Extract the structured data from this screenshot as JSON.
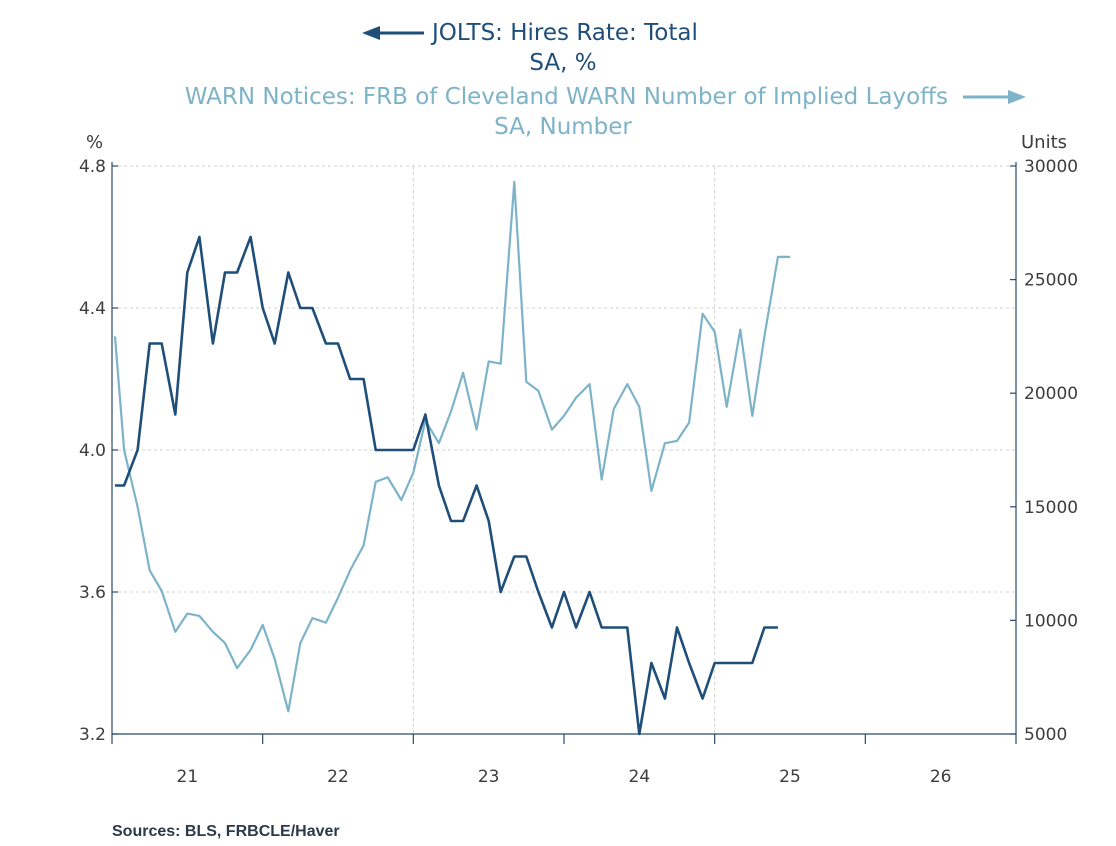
{
  "chart_data": {
    "type": "line",
    "legend": {
      "left_title": "JOLTS: Hires Rate: Total",
      "left_subtitle": "SA, %",
      "right_title": "WARN Notices: FRB of Cleveland WARN Number of Implied Layoffs",
      "right_subtitle": "SA, Number"
    },
    "y_left": {
      "unit": "%",
      "min": 3.2,
      "max": 4.8,
      "ticks": [
        4.8,
        4.4,
        4.0,
        3.6,
        3.2
      ],
      "tick_labels": [
        "4.8",
        "4.4",
        "4.0",
        "3.6",
        "3.2"
      ]
    },
    "y_right": {
      "unit": "Units",
      "min": 5000,
      "max": 30000,
      "ticks": [
        30000,
        25000,
        20000,
        15000,
        10000,
        5000
      ],
      "tick_labels": [
        "30000",
        "25000",
        "20000",
        "15000",
        "10000",
        "5000"
      ]
    },
    "x": {
      "min": 2020.52,
      "max": 2026.5,
      "year_boundaries": [
        2020.5,
        2021.5,
        2022.5,
        2023.5,
        2024.5,
        2025.5,
        2026.5
      ],
      "grid_at": [
        2022.5,
        2024.5
      ],
      "labels": [
        {
          "text": "21",
          "pos": 2021.0
        },
        {
          "text": "22",
          "pos": 2022.0
        },
        {
          "text": "23",
          "pos": 2023.0
        },
        {
          "text": "24",
          "pos": 2024.0
        },
        {
          "text": "25",
          "pos": 2025.0
        },
        {
          "text": "26",
          "pos": 2026.0
        }
      ]
    },
    "grid": true,
    "series": [
      {
        "name": "JOLTS: Hires Rate: Total",
        "axis": "left",
        "color": "#1f4e79",
        "x": [
          2020.52,
          2020.58,
          2020.67,
          2020.75,
          2020.83,
          2020.92,
          2021.0,
          2021.08,
          2021.17,
          2021.25,
          2021.33,
          2021.42,
          2021.5,
          2021.58,
          2021.67,
          2021.75,
          2021.83,
          2021.92,
          2022.0,
          2022.08,
          2022.17,
          2022.25,
          2022.33,
          2022.42,
          2022.5,
          2022.58,
          2022.67,
          2022.75,
          2022.83,
          2022.92,
          2023.0,
          2023.08,
          2023.17,
          2023.25,
          2023.33,
          2023.42,
          2023.5,
          2023.58,
          2023.67,
          2023.75,
          2023.83,
          2023.92,
          2024.0,
          2024.08,
          2024.17,
          2024.25,
          2024.33,
          2024.42,
          2024.5,
          2024.58,
          2024.67,
          2024.75,
          2024.83,
          2024.92
        ],
        "values": [
          3.9,
          3.9,
          4.0,
          4.3,
          4.3,
          4.1,
          4.5,
          4.6,
          4.3,
          4.5,
          4.5,
          4.6,
          4.4,
          4.3,
          4.5,
          4.4,
          4.4,
          4.3,
          4.3,
          4.2,
          4.2,
          4.0,
          4.0,
          4.0,
          4.0,
          4.1,
          3.9,
          3.8,
          3.8,
          3.9,
          3.8,
          3.6,
          3.7,
          3.7,
          3.6,
          3.5,
          3.6,
          3.5,
          3.6,
          3.5,
          3.5,
          3.5,
          3.2,
          3.4,
          3.3,
          3.5,
          3.4,
          3.3,
          3.4,
          3.4,
          3.4,
          3.4,
          3.5,
          3.5
        ]
      },
      {
        "name": "WARN Notices: FRB of Cleveland WARN Number of Implied Layoffs",
        "axis": "right",
        "color": "#7db3c9",
        "x": [
          2020.52,
          2020.58,
          2020.67,
          2020.75,
          2020.83,
          2020.92,
          2021.0,
          2021.08,
          2021.17,
          2021.25,
          2021.33,
          2021.42,
          2021.5,
          2021.58,
          2021.67,
          2021.75,
          2021.83,
          2021.92,
          2022.0,
          2022.08,
          2022.17,
          2022.25,
          2022.33,
          2022.42,
          2022.5,
          2022.58,
          2022.67,
          2022.75,
          2022.83,
          2022.92,
          2023.0,
          2023.08,
          2023.17,
          2023.25,
          2023.33,
          2023.42,
          2023.5,
          2023.58,
          2023.67,
          2023.75,
          2023.83,
          2023.92,
          2024.0,
          2024.08,
          2024.17,
          2024.25,
          2024.33,
          2024.42,
          2024.5,
          2024.58,
          2024.67,
          2024.75,
          2024.83,
          2024.92,
          2025.0
        ],
        "values": [
          22500,
          17500,
          15000,
          12200,
          11300,
          9500,
          10300,
          10200,
          9500,
          9000,
          7900,
          8700,
          9800,
          8300,
          6000,
          9000,
          10100,
          9900,
          11000,
          12200,
          13300,
          16100,
          16300,
          15300,
          16500,
          18800,
          17800,
          19200,
          20900,
          18400,
          21400,
          21300,
          29300,
          20500,
          20100,
          18400,
          19000,
          19800,
          20400,
          16200,
          19300,
          20400,
          19400,
          15700,
          17800,
          17900,
          18700,
          23500,
          22700,
          19400,
          22800,
          19000,
          22500,
          26000,
          26000
        ]
      }
    ]
  },
  "source": "Sources:  BLS, FRBCLE/Haver"
}
